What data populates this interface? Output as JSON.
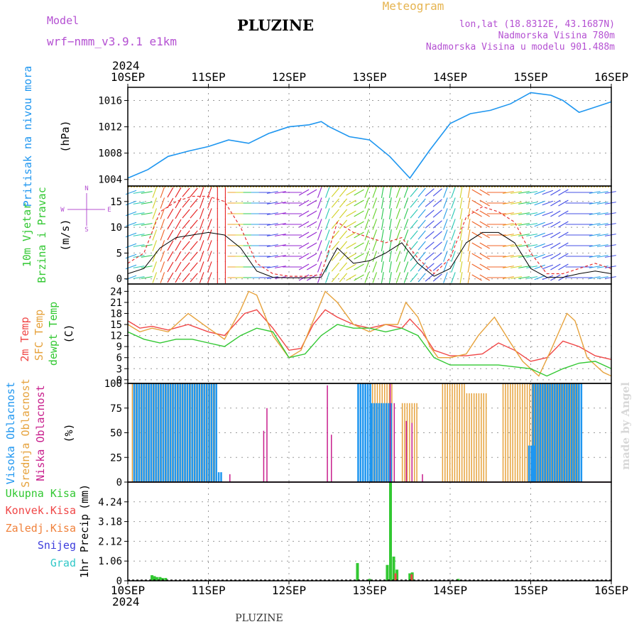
{
  "header": {
    "model_label": "Model",
    "model_name": "wrf−nmm_v3.9.1  e1km",
    "station": "PLUZINE",
    "product": "Meteogram",
    "lonlat": "lon,lat (18.8312E, 43.1687N)",
    "elevation": "Nadmorska Visina 780m",
    "model_elevation": "Nadmorska Visina u modelu 901.488m"
  },
  "footer": {
    "station": "PLUZINE"
  },
  "credit": "made by Angel",
  "colors": {
    "pressure": "#1e96f0",
    "t2m": "#f04646",
    "sfc": "#e6a23c",
    "dew": "#32c832",
    "high_cloud": "#1e96f0",
    "mid_cloud": "#e6a23c",
    "low_cloud": "#c81e8c",
    "total_precip": "#32c832",
    "conv_precip": "#f04646",
    "frozen_precip": "#f0823c",
    "snow": "#3c3cdc",
    "grad": "#32c8c8",
    "header_purple": "#b450d2",
    "header_orange": "#e6b450"
  },
  "chart_data": [
    {
      "type": "line",
      "panel": "pressure",
      "ylabel_lines": [
        "Pritisak na nivou mora",
        "(hPa)"
      ],
      "x_ticks": [
        "10SEP",
        "11SEP",
        "12SEP",
        "13SEP",
        "14SEP",
        "15SEP",
        "16SEP"
      ],
      "x_year": "2024",
      "ylim": [
        1003,
        1018
      ],
      "y_ticks": [
        1004,
        1008,
        1012,
        1016
      ],
      "grid": true,
      "series": [
        {
          "x": [
            0,
            0.25,
            0.5,
            0.75,
            1.0,
            1.25,
            1.5,
            1.75,
            2.0,
            2.25,
            2.4,
            2.5,
            2.75,
            3.0,
            3.25,
            3.5,
            3.75,
            4.0,
            4.25,
            4.5,
            4.75,
            5.0,
            5.25,
            5.4,
            5.6,
            5.75,
            6.0
          ],
          "values": [
            1004.2,
            1005.5,
            1007.5,
            1008.3,
            1009.0,
            1010.0,
            1009.5,
            1011.0,
            1012.0,
            1012.3,
            1012.8,
            1012.0,
            1010.5,
            1010.0,
            1007.5,
            1004.2,
            1008.5,
            1012.5,
            1014.0,
            1014.5,
            1015.5,
            1017.2,
            1016.8,
            1016.0,
            1014.2,
            1014.8,
            1015.8
          ]
        }
      ]
    },
    {
      "type": "line",
      "panel": "wind",
      "ylabel_lines": [
        "10m Vjetar",
        "Brzina i Pravac",
        "(m/s)"
      ],
      "direction_legend": {
        "w": "W",
        "e": "E",
        "n": "N",
        "s": "S"
      },
      "ylim": [
        -1,
        18
      ],
      "y_ticks": [
        0,
        5,
        10,
        15
      ],
      "grid": true,
      "series": [
        {
          "name": "gust",
          "x": [
            0,
            0.2,
            0.4,
            0.6,
            0.8,
            1.0,
            1.2,
            1.4,
            1.6,
            1.8,
            2.0,
            2.2,
            2.4,
            2.6,
            2.8,
            3.0,
            3.2,
            3.4,
            3.6,
            3.8,
            4.0,
            4.2,
            4.4,
            4.6,
            4.8,
            5.0,
            5.2,
            5.4,
            5.6,
            5.8,
            6.0
          ],
          "values": [
            3,
            5,
            13,
            15,
            16,
            16,
            15,
            10,
            3,
            1,
            0.5,
            0.5,
            0.8,
            11,
            9,
            8,
            7,
            8,
            4,
            1,
            4,
            12,
            14,
            13,
            11,
            5,
            1,
            1,
            2,
            3,
            2
          ]
        },
        {
          "name": "speed",
          "x": [
            0,
            0.2,
            0.4,
            0.6,
            0.8,
            1.0,
            1.2,
            1.4,
            1.6,
            1.8,
            2.0,
            2.2,
            2.4,
            2.6,
            2.8,
            3.0,
            3.2,
            3.4,
            3.6,
            3.8,
            4.0,
            4.2,
            4.4,
            4.6,
            4.8,
            5.0,
            5.2,
            5.4,
            5.6,
            5.8,
            6.0
          ],
          "values": [
            1,
            2,
            6,
            8,
            8.5,
            9,
            8.5,
            6,
            1.5,
            0.3,
            0.2,
            0.2,
            0.3,
            6,
            3,
            3.5,
            5,
            7,
            3,
            0.5,
            2,
            7,
            9,
            9,
            7,
            2,
            0.3,
            0.3,
            1,
            1.5,
            1
          ]
        }
      ]
    },
    {
      "type": "line",
      "panel": "temperature",
      "ylabel_lines": [
        "2m Temp",
        "SFC Temp",
        "dewpt Temp",
        "(C)"
      ],
      "ylim": [
        -1,
        26
      ],
      "y_ticks": [
        0,
        3,
        6,
        9,
        12,
        15,
        18,
        21,
        24
      ],
      "grid": true,
      "series": [
        {
          "name": "2m Temp",
          "x": [
            0,
            0.15,
            0.3,
            0.5,
            0.75,
            1.0,
            1.2,
            1.45,
            1.6,
            1.8,
            2.0,
            2.15,
            2.3,
            2.45,
            2.6,
            2.8,
            3.0,
            3.2,
            3.4,
            3.5,
            3.65,
            3.8,
            4.0,
            4.2,
            4.4,
            4.6,
            4.8,
            5.0,
            5.2,
            5.4,
            5.6,
            5.8,
            6.0
          ],
          "values": [
            16,
            14,
            14.5,
            13.5,
            15,
            13,
            12,
            18,
            19,
            14,
            8,
            8.5,
            15,
            19,
            17,
            15,
            14,
            15,
            14,
            16.5,
            13,
            8,
            6.5,
            6.5,
            7,
            10,
            8,
            5,
            6,
            10.5,
            9,
            6.5,
            5.5
          ]
        },
        {
          "name": "SFC Temp",
          "x": [
            0,
            0.15,
            0.3,
            0.5,
            0.65,
            0.75,
            1.0,
            1.2,
            1.4,
            1.5,
            1.6,
            1.8,
            2.0,
            2.15,
            2.3,
            2.45,
            2.6,
            2.8,
            3.0,
            3.2,
            3.35,
            3.45,
            3.6,
            3.75,
            3.85,
            4.0,
            4.2,
            4.35,
            4.55,
            4.75,
            4.9,
            5.1,
            5.25,
            5.45,
            5.55,
            5.7,
            5.9,
            6.0
          ],
          "values": [
            15,
            13,
            14,
            13,
            16,
            18,
            14,
            11,
            19,
            24,
            23,
            12,
            6,
            8,
            16,
            24,
            21,
            15,
            13,
            15,
            15,
            21,
            17,
            9,
            6,
            6,
            7,
            12,
            17,
            10,
            5,
            1,
            8,
            18,
            16,
            6,
            2,
            1
          ]
        },
        {
          "name": "dewpt Temp",
          "x": [
            0,
            0.2,
            0.4,
            0.6,
            0.8,
            1.0,
            1.2,
            1.4,
            1.6,
            1.8,
            2.0,
            2.2,
            2.4,
            2.6,
            2.8,
            3.0,
            3.2,
            3.4,
            3.6,
            3.8,
            4.0,
            4.2,
            4.4,
            4.6,
            4.8,
            5.0,
            5.2,
            5.4,
            5.6,
            5.8,
            6.0
          ],
          "values": [
            13,
            11,
            10,
            11,
            11,
            10,
            9,
            12,
            14,
            13,
            6,
            7,
            12,
            15,
            14,
            14,
            13,
            14,
            12,
            6,
            4,
            4,
            4,
            4,
            3.5,
            3,
            1,
            3,
            4.5,
            5,
            3
          ]
        }
      ]
    },
    {
      "type": "bar",
      "panel": "clouds",
      "ylabel_lines": [
        "Visoka Oblacnost",
        "Srednja Oblacnost",
        "Niska Oblacnost",
        "(%)"
      ],
      "ylim": [
        0,
        100
      ],
      "y_ticks": [
        0,
        25,
        50,
        75,
        100
      ],
      "grid": true,
      "series": [
        {
          "name": "Visoka Oblacnost",
          "segments": [
            [
              0.05,
              1.1,
              100
            ],
            [
              1.1,
              1.15,
              10
            ],
            [
              2.83,
              3.0,
              100
            ],
            [
              3.0,
              3.25,
              80
            ],
            [
              5.0,
              5.62,
              100
            ],
            [
              4.95,
              5.02,
              37
            ]
          ]
        },
        {
          "name": "Srednja Oblacnost",
          "segments": [
            [
              0.05,
              1.1,
              100
            ],
            [
              2.85,
              3.28,
              100
            ],
            [
              3.4,
              3.6,
              80
            ],
            [
              3.9,
              4.2,
              100
            ],
            [
              4.2,
              4.45,
              90
            ],
            [
              4.65,
              5.6,
              100
            ]
          ]
        },
        {
          "name": "Niska Oblacnost",
          "spikes": [
            [
              1.26,
              8
            ],
            [
              1.68,
              52
            ],
            [
              1.72,
              75
            ],
            [
              2.47,
              98
            ],
            [
              2.52,
              48
            ],
            [
              3.25,
              100
            ],
            [
              3.3,
              80
            ],
            [
              3.45,
              62
            ],
            [
              3.52,
              60
            ],
            [
              3.65,
              8
            ]
          ]
        }
      ]
    },
    {
      "type": "bar",
      "panel": "precip",
      "ylabel_lines": [
        "1hr Precip",
        "(mm)"
      ],
      "legend": [
        "Ukupna  Kisa",
        "Konvek.Kisa",
        "Zaledj.Kisa",
        "Snijeg",
        "Grad"
      ],
      "ylim": [
        0,
        5.3
      ],
      "y_tick_labels": [
        "0",
        "1.06",
        "2.12",
        "3.18",
        "4.24"
      ],
      "y_ticks": [
        0,
        1.06,
        2.12,
        3.18,
        4.24
      ],
      "grid": true,
      "series": [
        {
          "name": "Ukupna  Kisa",
          "bars": [
            [
              0.3,
              0.3
            ],
            [
              0.33,
              0.25
            ],
            [
              0.36,
              0.2
            ],
            [
              0.4,
              0.2
            ],
            [
              0.43,
              0.15
            ],
            [
              0.47,
              0.15
            ],
            [
              2.85,
              0.95
            ],
            [
              3.0,
              0.1
            ],
            [
              3.22,
              0.85
            ],
            [
              3.26,
              5.3
            ],
            [
              3.3,
              1.3
            ],
            [
              3.34,
              0.6
            ],
            [
              3.5,
              0.4
            ],
            [
              3.53,
              0.45
            ],
            [
              4.1,
              0.1
            ]
          ]
        },
        {
          "name": "Konvek.Kisa",
          "bars": [
            [
              3.5,
              0.35
            ],
            [
              3.3,
              0.4
            ]
          ]
        }
      ]
    }
  ]
}
